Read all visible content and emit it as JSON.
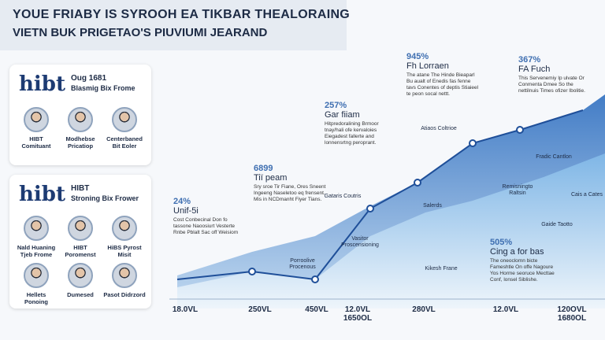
{
  "header": {
    "title": "YOUE FRIABY IS SYROOH EA TIKBAR THEALORAING",
    "subtitle": "VIETN BUK PRIGETAO'S PIUVIUMI JEARAND"
  },
  "panels": [
    {
      "logo": "hibt",
      "title": "Oug 1681",
      "subtitle": "Blasmig Bix Frome",
      "people": [
        "HIBT Comituant",
        "Modhebse Pricatiop",
        "Centerbaned Bit Eoler"
      ]
    },
    {
      "logo": "hibt",
      "title": "HIBT",
      "subtitle": "Stroning Bix Frower",
      "people": [
        "Nald Huaning Tjeb Frome",
        "HIBT Poromenst",
        "HiBS Pyrost Misit",
        "Hellets Ponoing",
        "Dumesed",
        "Pasot Didrzord"
      ]
    }
  ],
  "annotations": [
    {
      "value": "24%",
      "title": "Unif-5i",
      "text": "Cost Conbecinal Don fo tassone Naoosiurt Vesterte Rnbe Pblalt Sac off Weisiom"
    },
    {
      "value": "6899",
      "title": "Tiï peam",
      "text": "Sry sroe Tir Fiane, Ores Sneent Ingeeng Naseletoo eq frensent. Mis in NCDmanht Fiyer Tians."
    },
    {
      "value": "257%",
      "title": "Gar fiiam",
      "text": "Hitpredoralining Brmoor tnay/hali ofe kervaloies Eiegadest fallerte and lonnensrtng peroprant."
    },
    {
      "value": "945%",
      "title": "Fh Lorraen",
      "text": "The atane The Hinde Bieaparl Bu aualt of Enedis fas fenne tavs Conentes of deptis Stiaieel te peon socal nettt."
    },
    {
      "value": "367%",
      "title": "FA Fuch",
      "text": "This Servenemiy Ip ulvate Or Conmenta Dmee So the nettilnuis Times ofizer Ibolitie."
    },
    {
      "value": "505%",
      "title": "Cing a for bas",
      "text": "The oneoclomn bicte Fameshtle On offe Nagoure Yos Horme seoruce Mecttae Conf, lonsel Siblishe."
    }
  ],
  "chart_labels": [
    "Vasitor Proscensioning",
    "Porroolive Procenous",
    "Gataris Coutris",
    "Salerds",
    "Atiaos Coltrioe",
    "Remisningto Raltsin",
    "Fradic Cantlon",
    "Gaide Taotto",
    "Kikesh Frane",
    "Cais a Cates"
  ],
  "x_labels": [
    "18.0VL",
    "250VL",
    "450VL",
    "12.0VL 1650OL",
    "280VL",
    "12.0VL",
    "120OVL 1680OL"
  ]
}
